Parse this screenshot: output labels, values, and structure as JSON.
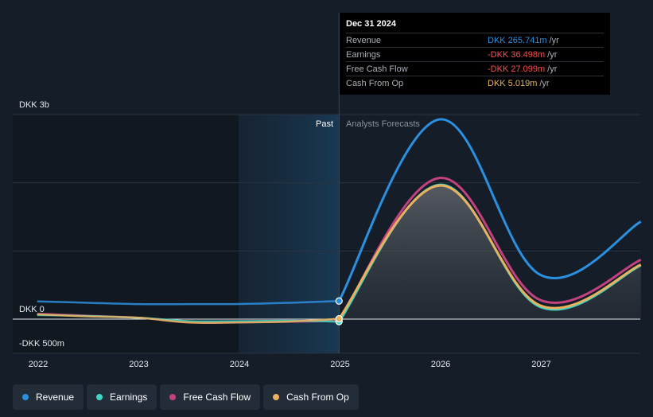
{
  "chart_data": {
    "type": "line",
    "y_axis": {
      "top_label": "DKK 3b",
      "zero_label": "DKK 0",
      "bottom_label": "-DKK 500m",
      "ylim_millions": [
        -500,
        3000
      ]
    },
    "x_ticks": [
      "2022",
      "2023",
      "2024",
      "2025",
      "2026",
      "2027"
    ],
    "period_labels": {
      "past": "Past",
      "forecast": "Analysts Forecasts"
    },
    "divider_year": 2024.99,
    "series": [
      {
        "name": "Revenue",
        "color": "#2b90e0",
        "points": [
          [
            2021.99,
            260
          ],
          [
            2022.5,
            240
          ],
          [
            2023,
            220
          ],
          [
            2023.5,
            220
          ],
          [
            2024,
            222
          ],
          [
            2024.5,
            240
          ],
          [
            2024.99,
            266
          ],
          [
            2025.99,
            2930
          ],
          [
            2026.99,
            650
          ],
          [
            2027.99,
            1430
          ]
        ]
      },
      {
        "name": "Earnings",
        "color": "#3ed6c4",
        "points": [
          [
            2021.99,
            60
          ],
          [
            2022.5,
            45
          ],
          [
            2023,
            20
          ],
          [
            2023.5,
            -30
          ],
          [
            2024,
            -30
          ],
          [
            2024.5,
            -25
          ],
          [
            2024.99,
            -36
          ],
          [
            2025.99,
            1970
          ],
          [
            2026.99,
            180
          ],
          [
            2027.99,
            790
          ]
        ]
      },
      {
        "name": "Free Cash Flow",
        "color": "#c2427f",
        "points": [
          [
            2021.99,
            80
          ],
          [
            2022.5,
            50
          ],
          [
            2023,
            20
          ],
          [
            2023.5,
            -45
          ],
          [
            2024,
            -45
          ],
          [
            2024.5,
            -40
          ],
          [
            2024.99,
            -27
          ],
          [
            2025.99,
            2070
          ],
          [
            2026.99,
            280
          ],
          [
            2027.99,
            870
          ]
        ]
      },
      {
        "name": "Cash From Op",
        "color": "#e9b15e",
        "points": [
          [
            2021.99,
            70
          ],
          [
            2022.5,
            40
          ],
          [
            2023,
            20
          ],
          [
            2023.5,
            -50
          ],
          [
            2024,
            -50
          ],
          [
            2024.5,
            -35
          ],
          [
            2024.99,
            5
          ],
          [
            2025.99,
            1960
          ],
          [
            2026.99,
            200
          ],
          [
            2027.99,
            800
          ]
        ]
      }
    ]
  },
  "tooltip": {
    "date": "Dec 31 2024",
    "rows": [
      {
        "name": "Revenue",
        "value": "DKK 265.741m",
        "unit": "/yr",
        "color": "#2b90e0"
      },
      {
        "name": "Earnings",
        "value": "-DKK 36.498m",
        "unit": "/yr",
        "color": "#ff4d4d"
      },
      {
        "name": "Free Cash Flow",
        "value": "-DKK 27.099m",
        "unit": "/yr",
        "color": "#ff4d4d"
      },
      {
        "name": "Cash From Op",
        "value": "DKK 5.019m",
        "unit": "/yr",
        "color": "#e9b15e"
      }
    ]
  },
  "legend": [
    {
      "label": "Revenue",
      "color": "#2b90e0"
    },
    {
      "label": "Earnings",
      "color": "#3ed6c4"
    },
    {
      "label": "Free Cash Flow",
      "color": "#c2427f"
    },
    {
      "label": "Cash From Op",
      "color": "#e9b15e"
    }
  ]
}
